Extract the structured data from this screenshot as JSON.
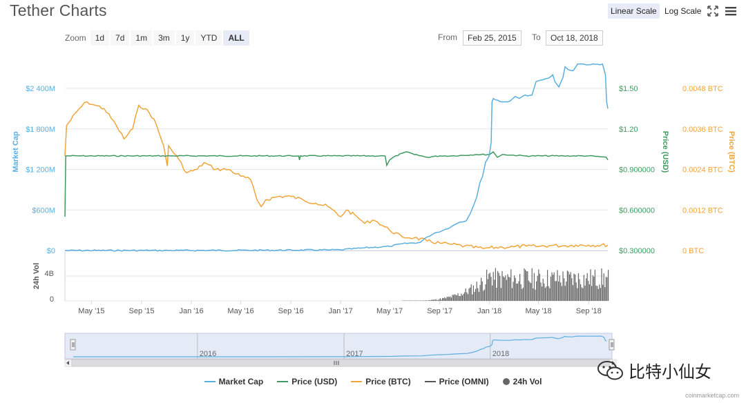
{
  "header": {
    "title": "Tether Charts",
    "linear_scale": "Linear Scale",
    "log_scale": "Log Scale"
  },
  "toolbar": {
    "zoom_label": "Zoom",
    "zoom_buttons": [
      "1d",
      "7d",
      "1m",
      "3m",
      "1y",
      "YTD",
      "ALL"
    ],
    "active_zoom": "ALL",
    "from_label": "From",
    "from_value": "Feb 25, 2015",
    "to_label": "To",
    "to_value": "Oct 18, 2018"
  },
  "colors": {
    "market_cap": "#5aaee0",
    "price_usd": "#3f9a5f",
    "price_btc": "#f0a43a",
    "price_omni": "#555555",
    "volume": "#666666",
    "grid": "#e6e6e6",
    "navigator_fill": "#cfd8f0"
  },
  "chart_data": {
    "type": "line",
    "x_axis_labels": [
      "May '15",
      "Sep '15",
      "Jan '16",
      "May '16",
      "Sep '16",
      "Jan '17",
      "May '17",
      "Sep '17",
      "Jan '18",
      "May '18",
      "Sep '18"
    ],
    "x_range": [
      "2015-02-25",
      "2018-10-18"
    ],
    "axes": {
      "market_cap": {
        "title": "Market Cap",
        "ticks": [
          "$0",
          "$600M",
          "$1 200M",
          "$1 800M",
          "$2 400M"
        ],
        "range": [
          0,
          2400
        ]
      },
      "price_usd": {
        "title": "Price (USD)",
        "ticks": [
          "$0.300000",
          "$0.600000",
          "$0.900000",
          "$1.20",
          "$1.50"
        ],
        "range": [
          0.3,
          1.5
        ]
      },
      "price_btc": {
        "title": "Price (BTC)",
        "ticks": [
          "0 BTC",
          "0.0012 BTC",
          "0.0024 BTC",
          "0.0036 BTC",
          "0.0048 BTC"
        ],
        "range": [
          0,
          0.0048
        ]
      },
      "volume": {
        "title": "24h Vol",
        "ticks": [
          "0",
          "4B"
        ]
      }
    },
    "series": [
      {
        "name": "Market Cap",
        "unit": "USD millions",
        "points": [
          [
            "2015-02-25",
            0
          ],
          [
            "2015-12-01",
            1
          ],
          [
            "2016-06-01",
            3
          ],
          [
            "2016-12-01",
            8
          ],
          [
            "2017-01-01",
            10
          ],
          [
            "2017-03-01",
            40
          ],
          [
            "2017-05-01",
            60
          ],
          [
            "2017-06-01",
            100
          ],
          [
            "2017-07-15",
            120
          ],
          [
            "2017-08-01",
            200
          ],
          [
            "2017-08-20",
            260
          ],
          [
            "2017-09-10",
            300
          ],
          [
            "2017-10-01",
            360
          ],
          [
            "2017-10-20",
            420
          ],
          [
            "2017-11-05",
            440
          ],
          [
            "2017-11-15",
            550
          ],
          [
            "2017-11-25",
            700
          ],
          [
            "2017-12-01",
            800
          ],
          [
            "2017-12-08",
            1000
          ],
          [
            "2017-12-15",
            1100
          ],
          [
            "2017-12-22",
            1300
          ],
          [
            "2017-12-31",
            1400
          ],
          [
            "2018-01-05",
            1600
          ],
          [
            "2018-01-07",
            2200
          ],
          [
            "2018-01-10",
            2250
          ],
          [
            "2018-02-01",
            2200
          ],
          [
            "2018-02-20",
            2210
          ],
          [
            "2018-03-05",
            2280
          ],
          [
            "2018-03-15",
            2250
          ],
          [
            "2018-03-25",
            2290
          ],
          [
            "2018-04-15",
            2300
          ],
          [
            "2018-04-25",
            2500
          ],
          [
            "2018-05-05",
            2520
          ],
          [
            "2018-05-25",
            2550
          ],
          [
            "2018-06-05",
            2600
          ],
          [
            "2018-06-10",
            2500
          ],
          [
            "2018-06-20",
            2420
          ],
          [
            "2018-06-30",
            2560
          ],
          [
            "2018-07-05",
            2720
          ],
          [
            "2018-07-12",
            2680
          ],
          [
            "2018-07-25",
            2660
          ],
          [
            "2018-08-05",
            2760
          ],
          [
            "2018-08-15",
            2760
          ],
          [
            "2018-09-05",
            2750
          ],
          [
            "2018-10-05",
            2760
          ],
          [
            "2018-10-12",
            2600
          ],
          [
            "2018-10-15",
            2200
          ],
          [
            "2018-10-18",
            2100
          ]
        ]
      },
      {
        "name": "Price (USD)",
        "unit": "USD",
        "points": [
          [
            "2015-02-25",
            0.55
          ],
          [
            "2015-02-27",
            1.0
          ],
          [
            "2015-04-01",
            1.0
          ],
          [
            "2016-09-20",
            1.0
          ],
          [
            "2016-09-22",
            0.97
          ],
          [
            "2016-09-24",
            1.0
          ],
          [
            "2017-04-20",
            1.0
          ],
          [
            "2017-04-24",
            0.93
          ],
          [
            "2017-05-01",
            0.97
          ],
          [
            "2017-05-10",
            0.99
          ],
          [
            "2017-06-01",
            1.02
          ],
          [
            "2017-06-10",
            1.03
          ],
          [
            "2017-07-01",
            1.01
          ],
          [
            "2017-08-01",
            0.99
          ],
          [
            "2017-09-01",
            1.0
          ],
          [
            "2017-10-01",
            1.0
          ],
          [
            "2017-12-01",
            1.01
          ],
          [
            "2018-01-01",
            1.01
          ],
          [
            "2018-01-10",
            1.03
          ],
          [
            "2018-01-20",
            0.99
          ],
          [
            "2018-02-01",
            1.01
          ],
          [
            "2018-04-01",
            1.0
          ],
          [
            "2018-07-01",
            1.0
          ],
          [
            "2018-09-01",
            1.0
          ],
          [
            "2018-10-14",
            0.99
          ],
          [
            "2018-10-18",
            0.97
          ]
        ]
      },
      {
        "name": "Price (BTC)",
        "unit": "BTC",
        "points": [
          [
            "2015-02-25",
            0.0028
          ],
          [
            "2015-03-01",
            0.0037
          ],
          [
            "2015-04-01",
            0.0042
          ],
          [
            "2015-04-20",
            0.0044
          ],
          [
            "2015-05-10",
            0.0043
          ],
          [
            "2015-06-01",
            0.0042
          ],
          [
            "2015-07-01",
            0.0037
          ],
          [
            "2015-07-20",
            0.0033
          ],
          [
            "2015-08-10",
            0.0036
          ],
          [
            "2015-08-25",
            0.0043
          ],
          [
            "2015-09-10",
            0.0042
          ],
          [
            "2015-10-01",
            0.0039
          ],
          [
            "2015-10-25",
            0.0031
          ],
          [
            "2015-11-03",
            0.0025
          ],
          [
            "2015-11-06",
            0.0031
          ],
          [
            "2015-11-12",
            0.003
          ],
          [
            "2015-12-01",
            0.0027
          ],
          [
            "2015-12-20",
            0.0023
          ],
          [
            "2016-01-15",
            0.0024
          ],
          [
            "2016-02-01",
            0.0026
          ],
          [
            "2016-03-01",
            0.0024
          ],
          [
            "2016-04-01",
            0.0024
          ],
          [
            "2016-05-01",
            0.0022
          ],
          [
            "2016-05-25",
            0.0021
          ],
          [
            "2016-06-10",
            0.0015
          ],
          [
            "2016-06-20",
            0.0013
          ],
          [
            "2016-07-01",
            0.0015
          ],
          [
            "2016-08-01",
            0.0016
          ],
          [
            "2016-09-01",
            0.0016
          ],
          [
            "2016-10-01",
            0.0015
          ],
          [
            "2016-11-01",
            0.0014
          ],
          [
            "2016-12-01",
            0.0013
          ],
          [
            "2017-01-01",
            0.001
          ],
          [
            "2017-01-15",
            0.0012
          ],
          [
            "2017-02-10",
            0.001
          ],
          [
            "2017-03-01",
            0.0008
          ],
          [
            "2017-03-20",
            0.0009
          ],
          [
            "2017-04-01",
            0.00085
          ],
          [
            "2017-05-01",
            0.0006
          ],
          [
            "2017-06-01",
            0.0004
          ],
          [
            "2017-07-01",
            0.00038
          ],
          [
            "2017-08-01",
            0.00028
          ],
          [
            "2017-09-01",
            0.00022
          ],
          [
            "2017-10-01",
            0.00018
          ],
          [
            "2017-11-01",
            0.00013
          ],
          [
            "2017-12-15",
            6e-05
          ],
          [
            "2018-01-01",
            8e-05
          ],
          [
            "2018-02-01",
            0.0001
          ],
          [
            "2018-03-01",
            0.00011
          ],
          [
            "2018-04-01",
            0.00013
          ],
          [
            "2018-05-01",
            0.00012
          ],
          [
            "2018-06-01",
            0.00015
          ],
          [
            "2018-07-01",
            0.00014
          ],
          [
            "2018-08-01",
            0.00016
          ],
          [
            "2018-09-01",
            0.00016
          ],
          [
            "2018-10-18",
            0.00016
          ]
        ]
      }
    ],
    "volume_series": {
      "name": "24h Vol",
      "start": "2017-06-01",
      "peak_date": "2018-01-10",
      "peak_value_billions": 5
    },
    "navigator": {
      "labels": [
        "2016",
        "2017",
        "2018"
      ]
    },
    "legend": [
      "Market Cap",
      "Price (USD)",
      "Price (BTC)",
      "Price (OMNI)",
      "24h Vol"
    ],
    "legend_position": "bottom-center"
  },
  "watermark": {
    "text": "比特小仙女"
  },
  "credits": "coinmarketcap.com"
}
